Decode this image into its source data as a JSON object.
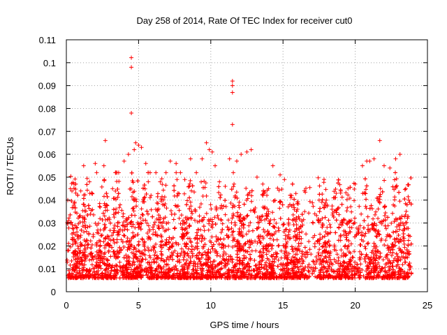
{
  "chart_data": {
    "type": "scatter",
    "title": "Day 258 of 2014, Rate Of TEC Index for receiver cut0",
    "xlabel": "GPS time / hours",
    "ylabel": "ROTI / TECUs",
    "xlim": [
      0,
      25
    ],
    "ylim": [
      0,
      0.11
    ],
    "xticks": [
      0,
      5,
      10,
      15,
      20,
      25
    ],
    "xtick_labels": [
      "0",
      "5",
      "10",
      "15",
      "20",
      "25"
    ],
    "yticks": [
      0,
      0.01,
      0.02,
      0.03,
      0.04,
      0.05,
      0.06,
      0.07,
      0.08,
      0.09,
      0.1,
      0.11
    ],
    "ytick_labels": [
      "0",
      "0.01",
      "0.02",
      "0.03",
      "0.04",
      "0.05",
      "0.06",
      "0.07",
      "0.08",
      "0.09",
      "0.1",
      "0.11"
    ],
    "grid": true,
    "legend": "none",
    "marker": "plus",
    "marker_color": "#ff0000",
    "series": [
      {
        "name": "ROTI",
        "points": [
          [
            0.1,
            0.04
          ],
          [
            0.3,
            0.03
          ],
          [
            0.6,
            0.025
          ],
          [
            1.0,
            0.044
          ],
          [
            1.2,
            0.055
          ],
          [
            1.6,
            0.048
          ],
          [
            2.0,
            0.056
          ],
          [
            2.1,
            0.052
          ],
          [
            2.6,
            0.055
          ],
          [
            2.7,
            0.066
          ],
          [
            3.2,
            0.045
          ],
          [
            3.5,
            0.052
          ],
          [
            4.0,
            0.057
          ],
          [
            4.3,
            0.06
          ],
          [
            4.5,
            0.1022
          ],
          [
            4.5,
            0.098
          ],
          [
            4.5,
            0.078
          ],
          [
            4.7,
            0.062
          ],
          [
            4.8,
            0.065
          ],
          [
            5.0,
            0.064
          ],
          [
            5.2,
            0.063
          ],
          [
            5.5,
            0.056
          ],
          [
            5.8,
            0.052
          ],
          [
            6.2,
            0.052
          ],
          [
            6.5,
            0.048
          ],
          [
            6.9,
            0.052
          ],
          [
            7.2,
            0.057
          ],
          [
            7.6,
            0.056
          ],
          [
            7.9,
            0.052
          ],
          [
            8.2,
            0.049
          ],
          [
            8.6,
            0.058
          ],
          [
            9.0,
            0.052
          ],
          [
            9.4,
            0.058
          ],
          [
            9.7,
            0.065
          ],
          [
            9.9,
            0.062
          ],
          [
            10.1,
            0.061
          ],
          [
            10.3,
            0.055
          ],
          [
            10.6,
            0.048
          ],
          [
            11.0,
            0.046
          ],
          [
            11.3,
            0.058
          ],
          [
            11.5,
            0.092
          ],
          [
            11.5,
            0.09
          ],
          [
            11.5,
            0.087
          ],
          [
            11.5,
            0.073
          ],
          [
            11.8,
            0.057
          ],
          [
            12.1,
            0.06
          ],
          [
            12.5,
            0.061
          ],
          [
            12.8,
            0.062
          ],
          [
            13.2,
            0.05
          ],
          [
            13.6,
            0.047
          ],
          [
            14.0,
            0.045
          ],
          [
            14.3,
            0.055
          ],
          [
            14.8,
            0.051
          ],
          [
            15.1,
            0.049
          ],
          [
            15.6,
            0.042
          ],
          [
            16.0,
            0.036
          ],
          [
            16.5,
            0.035
          ],
          [
            17.2,
            0.034
          ],
          [
            17.5,
            0.04
          ],
          [
            18.0,
            0.04
          ],
          [
            18.5,
            0.041
          ],
          [
            19.0,
            0.044
          ],
          [
            19.5,
            0.045
          ],
          [
            20.0,
            0.047
          ],
          [
            20.5,
            0.055
          ],
          [
            20.8,
            0.057
          ],
          [
            21.0,
            0.057
          ],
          [
            21.3,
            0.058
          ],
          [
            21.7,
            0.066
          ],
          [
            22.0,
            0.055
          ],
          [
            22.4,
            0.054
          ],
          [
            22.8,
            0.058
          ],
          [
            23.1,
            0.06
          ],
          [
            23.5,
            0.045
          ],
          [
            23.7,
            0.04
          ]
        ]
      }
    ]
  }
}
